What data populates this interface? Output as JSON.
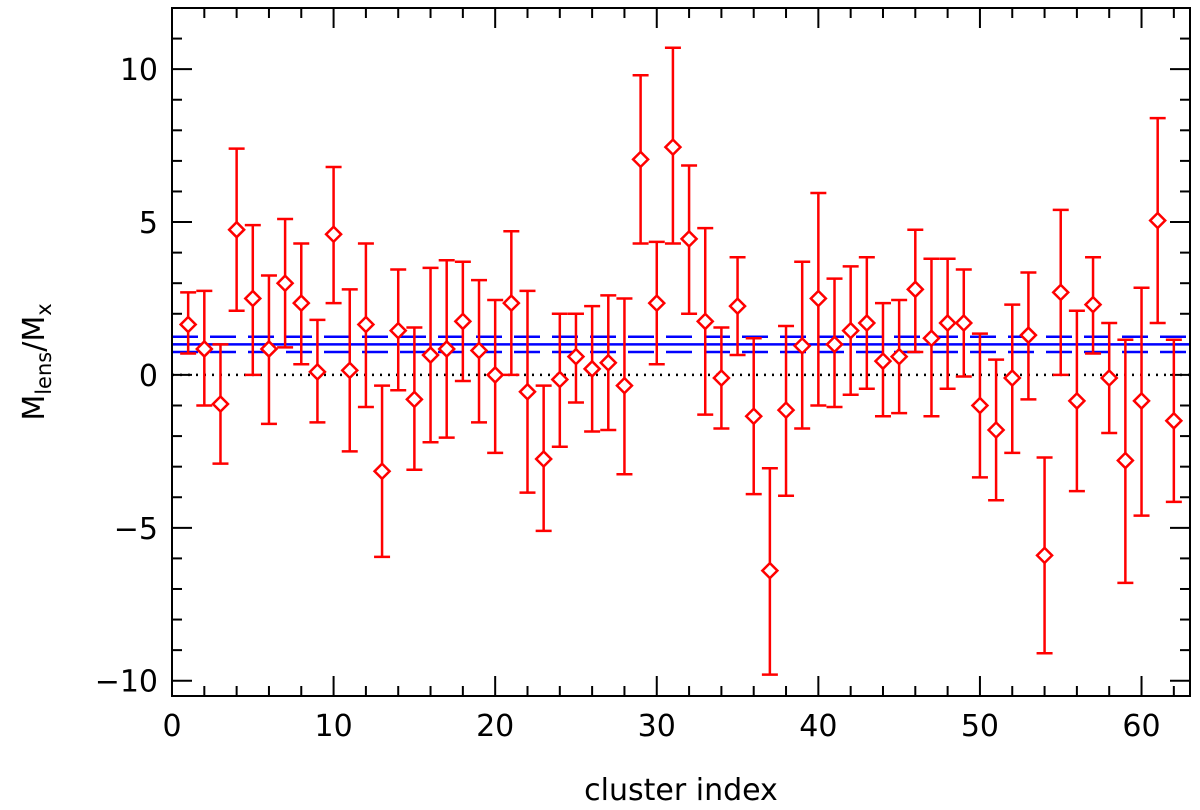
{
  "chart_data": {
    "type": "scatter",
    "title": "",
    "xlabel": "cluster index",
    "ylabel": {
      "base": "M",
      "num_sub": "lens",
      "sep": "/",
      "den_base": "M",
      "den_sub": "x"
    },
    "xlim": [
      0,
      63
    ],
    "ylim": [
      -10.5,
      12
    ],
    "xticks": [
      0,
      10,
      20,
      30,
      40,
      50,
      60
    ],
    "yticks": [
      -10,
      -5,
      0,
      5,
      10
    ],
    "ytick_labels": [
      "−10",
      "−5",
      "0",
      "5",
      "10"
    ],
    "xtick_labels": [
      "0",
      "10",
      "20",
      "30",
      "40",
      "50",
      "60"
    ],
    "grid": false,
    "reference_lines": {
      "zero": {
        "y": 0,
        "style": "dotted",
        "color": "#000000"
      },
      "mean": {
        "y": 1.0,
        "style": "solid",
        "color": "#0000ff"
      },
      "mean_upper": {
        "y": 1.25,
        "style": "dashed",
        "color": "#0000ff"
      },
      "mean_lower": {
        "y": 0.75,
        "style": "dashed",
        "color": "#0000ff"
      }
    },
    "series": [
      {
        "marker": "diamond",
        "color": "#ff0000",
        "points": [
          {
            "x": 1,
            "y": 1.65,
            "lo": 0.7,
            "hi": 2.7
          },
          {
            "x": 2,
            "y": 0.85,
            "lo": -1.0,
            "hi": 2.75
          },
          {
            "x": 3,
            "y": -0.95,
            "lo": -2.9,
            "hi": 1.0
          },
          {
            "x": 4,
            "y": 4.75,
            "lo": 2.1,
            "hi": 7.4
          },
          {
            "x": 5,
            "y": 2.5,
            "lo": 0.0,
            "hi": 4.9
          },
          {
            "x": 6,
            "y": 0.85,
            "lo": -1.6,
            "hi": 3.25
          },
          {
            "x": 7,
            "y": 3.0,
            "lo": 0.9,
            "hi": 5.1
          },
          {
            "x": 8,
            "y": 2.35,
            "lo": 0.35,
            "hi": 4.3
          },
          {
            "x": 9,
            "y": 0.1,
            "lo": -1.55,
            "hi": 1.8
          },
          {
            "x": 10,
            "y": 4.6,
            "lo": 2.35,
            "hi": 6.8
          },
          {
            "x": 11,
            "y": 0.15,
            "lo": -2.5,
            "hi": 2.8
          },
          {
            "x": 12,
            "y": 1.65,
            "lo": -1.05,
            "hi": 4.3
          },
          {
            "x": 13,
            "y": -3.15,
            "lo": -5.95,
            "hi": -0.35
          },
          {
            "x": 14,
            "y": 1.45,
            "lo": -0.5,
            "hi": 3.45
          },
          {
            "x": 15,
            "y": -0.8,
            "lo": -3.1,
            "hi": 1.55
          },
          {
            "x": 16,
            "y": 0.65,
            "lo": -2.2,
            "hi": 3.5
          },
          {
            "x": 17,
            "y": 0.85,
            "lo": -2.05,
            "hi": 3.75
          },
          {
            "x": 18,
            "y": 1.75,
            "lo": -0.2,
            "hi": 3.7
          },
          {
            "x": 19,
            "y": 0.8,
            "lo": -1.55,
            "hi": 3.1
          },
          {
            "x": 20,
            "y": 0.0,
            "lo": -2.55,
            "hi": 2.45
          },
          {
            "x": 21,
            "y": 2.35,
            "lo": 0.0,
            "hi": 4.7
          },
          {
            "x": 22,
            "y": -0.55,
            "lo": -3.85,
            "hi": 2.75
          },
          {
            "x": 23,
            "y": -2.75,
            "lo": -5.1,
            "hi": -0.35
          },
          {
            "x": 24,
            "y": -0.15,
            "lo": -2.35,
            "hi": 2.0
          },
          {
            "x": 25,
            "y": 0.6,
            "lo": -0.9,
            "hi": 2.0
          },
          {
            "x": 26,
            "y": 0.2,
            "lo": -1.85,
            "hi": 2.25
          },
          {
            "x": 27,
            "y": 0.4,
            "lo": -1.8,
            "hi": 2.6
          },
          {
            "x": 28,
            "y": -0.35,
            "lo": -3.25,
            "hi": 2.5
          },
          {
            "x": 29,
            "y": 7.05,
            "lo": 4.3,
            "hi": 9.8
          },
          {
            "x": 30,
            "y": 2.35,
            "lo": 0.35,
            "hi": 4.35
          },
          {
            "x": 31,
            "y": 7.45,
            "lo": 4.3,
            "hi": 10.7
          },
          {
            "x": 32,
            "y": 4.45,
            "lo": 2.0,
            "hi": 6.85
          },
          {
            "x": 33,
            "y": 1.75,
            "lo": -1.3,
            "hi": 4.8
          },
          {
            "x": 34,
            "y": -0.1,
            "lo": -1.75,
            "hi": 1.55
          },
          {
            "x": 35,
            "y": 2.25,
            "lo": 0.65,
            "hi": 3.85
          },
          {
            "x": 36,
            "y": -1.35,
            "lo": -3.9,
            "hi": 1.2
          },
          {
            "x": 37,
            "y": -6.4,
            "lo": -9.8,
            "hi": -3.05
          },
          {
            "x": 38,
            "y": -1.15,
            "lo": -3.95,
            "hi": 1.6
          },
          {
            "x": 39,
            "y": 0.95,
            "lo": -1.75,
            "hi": 3.7
          },
          {
            "x": 40,
            "y": 2.5,
            "lo": -1.0,
            "hi": 5.95
          },
          {
            "x": 41,
            "y": 1.0,
            "lo": -1.05,
            "hi": 3.15
          },
          {
            "x": 42,
            "y": 1.45,
            "lo": -0.65,
            "hi": 3.55
          },
          {
            "x": 43,
            "y": 1.7,
            "lo": -0.45,
            "hi": 3.85
          },
          {
            "x": 44,
            "y": 0.45,
            "lo": -1.35,
            "hi": 2.35
          },
          {
            "x": 45,
            "y": 0.6,
            "lo": -1.25,
            "hi": 2.45
          },
          {
            "x": 46,
            "y": 2.8,
            "lo": 0.75,
            "hi": 4.75
          },
          {
            "x": 47,
            "y": 1.2,
            "lo": -1.35,
            "hi": 3.8
          },
          {
            "x": 48,
            "y": 1.7,
            "lo": -0.45,
            "hi": 3.8
          },
          {
            "x": 49,
            "y": 1.7,
            "lo": -0.05,
            "hi": 3.45
          },
          {
            "x": 50,
            "y": -1.0,
            "lo": -3.35,
            "hi": 1.35
          },
          {
            "x": 51,
            "y": -1.8,
            "lo": -4.1,
            "hi": 0.5
          },
          {
            "x": 52,
            "y": -0.1,
            "lo": -2.55,
            "hi": 2.3
          },
          {
            "x": 53,
            "y": 1.3,
            "lo": -0.8,
            "hi": 3.35
          },
          {
            "x": 54,
            "y": -5.9,
            "lo": -9.1,
            "hi": -2.7
          },
          {
            "x": 55,
            "y": 2.7,
            "lo": 0.0,
            "hi": 5.4
          },
          {
            "x": 56,
            "y": -0.85,
            "lo": -3.8,
            "hi": 2.1
          },
          {
            "x": 57,
            "y": 2.3,
            "lo": 0.7,
            "hi": 3.85
          },
          {
            "x": 58,
            "y": -0.1,
            "lo": -1.9,
            "hi": 1.7
          },
          {
            "x": 59,
            "y": -2.8,
            "lo": -6.8,
            "hi": 1.15
          },
          {
            "x": 60,
            "y": -0.85,
            "lo": -4.6,
            "hi": 2.85
          },
          {
            "x": 61,
            "y": 5.05,
            "lo": 1.7,
            "hi": 8.4
          },
          {
            "x": 62,
            "y": -1.5,
            "lo": -4.15,
            "hi": 1.15
          }
        ]
      }
    ]
  }
}
